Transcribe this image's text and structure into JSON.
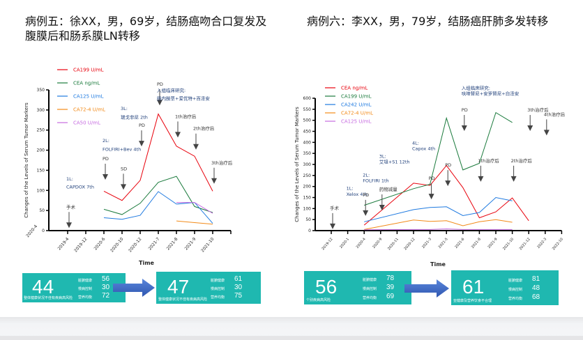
{
  "colors": {
    "red": "#e8000b",
    "green": "#1a7a3c",
    "blue": "#1f7ae0",
    "orange": "#f28a18",
    "purple": "#c66be0",
    "annotation_blue": "#1f3f7a",
    "card_teal": "#1fb8b0",
    "arrow_blue": "#3a66c4"
  },
  "left_case": {
    "title": "病例五：徐XX，男，69岁，结肠癌吻合口复发及腹膜后和肠系膜LN转移",
    "cards": [
      {
        "score": "44",
        "subtitle": "整体健康状况不佳有疾病高风险",
        "metrics": [
          {
            "label": "脏腑健康",
            "value": "56"
          },
          {
            "label": "慢病控制",
            "value": "30"
          },
          {
            "label": "营养均衡",
            "value": "72"
          }
        ]
      },
      {
        "score": "47",
        "subtitle": "整体健康状况不佳有疾病高风险",
        "metrics": [
          {
            "label": "脏腑健康",
            "value": "61"
          },
          {
            "label": "慢病控制",
            "value": "30"
          },
          {
            "label": "营养均衡",
            "value": "75"
          }
        ]
      }
    ]
  },
  "right_case": {
    "title": "病例六：李XX，男，79岁，结肠癌肝肺多发转移",
    "cards": [
      {
        "score": "56",
        "subtitle": "个别疾病高风险",
        "metrics": [
          {
            "label": "脏腑健康",
            "value": "78"
          },
          {
            "label": "慢病控制",
            "value": "39"
          },
          {
            "label": "营养均衡",
            "value": "69"
          }
        ]
      },
      {
        "score": "61",
        "subtitle": "亚健康及营养饮食不合理",
        "metrics": [
          {
            "label": "脏腑健康",
            "value": "81"
          },
          {
            "label": "慢病控制",
            "value": "48"
          },
          {
            "label": "营养均衡",
            "value": "68"
          }
        ]
      }
    ]
  },
  "chart_data": [
    {
      "type": "line",
      "title": "",
      "xlabel": "Time",
      "ylabel": "Changes of the Levels of Serum Tumor Markers",
      "ylim": [
        0,
        350
      ],
      "yticks": [
        0,
        50,
        100,
        150,
        200,
        250,
        300,
        350
      ],
      "categories": [
        "2019-4",
        "2019-12",
        "2020-6",
        "2020-10",
        "2020-12",
        "2021-7",
        "2021-8",
        "2021-9",
        "2021-10"
      ],
      "extra_ytick_label": "2020-4",
      "legend": "top-left",
      "series": [
        {
          "name": "CA199 U/mL",
          "color": "red",
          "values": [
            null,
            null,
            98,
            75,
            125,
            290,
            210,
            185,
            98
          ]
        },
        {
          "name": "CEA ng/mL",
          "color": "green",
          "values": [
            null,
            null,
            53,
            40,
            68,
            120,
            135,
            60,
            45
          ]
        },
        {
          "name": "CA125 U/mL",
          "color": "blue",
          "values": [
            null,
            null,
            32,
            28,
            38,
            97,
            66,
            70,
            18
          ]
        },
        {
          "name": "CA72-4 U/mL",
          "color": "orange",
          "values": [
            null,
            null,
            null,
            null,
            null,
            null,
            24,
            20,
            16
          ]
        },
        {
          "name": "CA50 U/mL",
          "color": "purple",
          "values": [
            null,
            null,
            null,
            null,
            null,
            null,
            70,
            70,
            43
          ]
        }
      ],
      "annotations": [
        {
          "text": "手术",
          "x": "2019-4",
          "y": 55,
          "arrow": true,
          "blue": false
        },
        {
          "text": "1L:",
          "x": "2019-4",
          "y": 125,
          "arrow": false,
          "blue": true
        },
        {
          "text": "CAPDOX 7th",
          "x": "2019-4",
          "y": 105,
          "arrow": false,
          "blue": true
        },
        {
          "text": "PD",
          "x": "2020-6",
          "y": 175,
          "arrow": true,
          "blue": false
        },
        {
          "text": "SD",
          "x": "2020-10",
          "y": 150,
          "arrow": true,
          "blue": false
        },
        {
          "text": "2L:",
          "x": "2020-6",
          "y": 220,
          "arrow": false,
          "blue": true
        },
        {
          "text": "FOLFIRI+Bev 4th",
          "x": "2020-6",
          "y": 198,
          "arrow": false,
          "blue": true
        },
        {
          "text": "3L:",
          "x": "2020-10",
          "y": 300,
          "arrow": false,
          "blue": true
        },
        {
          "text": "瑞戈非尼 2th",
          "x": "2020-10",
          "y": 278,
          "arrow": false,
          "blue": true
        },
        {
          "text": "PD",
          "x": "2020-12",
          "y": 258,
          "arrow": true,
          "blue": false
        },
        {
          "text": "PD",
          "x": "2021-7",
          "y": 360,
          "arrow": true,
          "blue": false
        },
        {
          "text": "入组临床研究:",
          "x": "2021-7",
          "y": 345,
          "arrow": false,
          "blue": true
        },
        {
          "text": "肠内胺草+爱优特+百泽安",
          "x": "2021-7",
          "y": 325,
          "arrow": false,
          "blue": true
        },
        {
          "text": "1th治疗后",
          "x": "2021-8",
          "y": 280,
          "arrow": true,
          "blue": false
        },
        {
          "text": "2th治疗后",
          "x": "2021-9",
          "y": 250,
          "arrow": true,
          "blue": false
        },
        {
          "text": "3th治疗后",
          "x": "2021-10",
          "y": 165,
          "arrow": true,
          "blue": false
        }
      ]
    },
    {
      "type": "line",
      "title": "",
      "xlabel": "Time",
      "ylabel": "Changes of the Levels of Serum Tumor Markers",
      "ylim": [
        0,
        600
      ],
      "yticks": [
        0,
        50,
        100,
        150,
        200,
        250,
        300,
        350,
        400,
        450,
        500,
        550,
        600
      ],
      "categories": [
        "2019-12",
        "2020-1",
        "2020-4",
        "2020-9",
        "2020-11",
        "2020-12",
        "2021-3",
        "2021-5",
        "2021-6",
        "2021-8",
        "2021-9",
        "2021-10",
        "2021-12",
        "2022-3",
        "2022-10"
      ],
      "legend": "top-left",
      "series": [
        {
          "name": "CEA ng/mL",
          "color": "red",
          "values": [
            null,
            null,
            25,
            null,
            null,
            215,
            205,
            295,
            195,
            58,
            85,
            148,
            45,
            null,
            null
          ]
        },
        {
          "name": "CA199 U/mL",
          "color": "green",
          "values": [
            null,
            null,
            115,
            null,
            null,
            190,
            210,
            510,
            275,
            305,
            535,
            490,
            null,
            null,
            null
          ]
        },
        {
          "name": "CA242 U/mL",
          "color": "blue",
          "values": [
            null,
            null,
            40,
            null,
            null,
            95,
            105,
            108,
            68,
            82,
            150,
            135,
            null,
            null,
            null
          ]
        },
        {
          "name": "CA72-4 U/mL",
          "color": "orange",
          "values": [
            null,
            null,
            5,
            null,
            null,
            48,
            42,
            45,
            22,
            40,
            50,
            38,
            null,
            null,
            null
          ]
        },
        {
          "name": "CA125 U/mL",
          "color": "purple",
          "values": [
            null,
            null,
            4,
            null,
            null,
            5,
            5,
            8,
            5,
            5,
            5,
            5,
            null,
            null,
            null
          ]
        }
      ],
      "annotations": [
        {
          "text": "手术",
          "x": "2019-12",
          "y": 95,
          "arrow": true,
          "blue": false
        },
        {
          "text": "1L:",
          "x": "2020-1",
          "y": 185,
          "arrow": false,
          "blue": true
        },
        {
          "text": "Xelox 4th",
          "x": "2020-1",
          "y": 158,
          "arrow": false,
          "blue": true
        },
        {
          "text": "PD",
          "x": "2020-4",
          "y": 155,
          "arrow": true,
          "blue": false
        },
        {
          "text": "2L:",
          "x": "2020-4",
          "y": 245,
          "arrow": false,
          "blue": true
        },
        {
          "text": "FOLFIRI 1th",
          "x": "2020-4",
          "y": 220,
          "arrow": false,
          "blue": true
        },
        {
          "text": "药物减量",
          "x": "2020-9",
          "y": 180,
          "arrow": true,
          "blue": false
        },
        {
          "text": "3L:",
          "x": "2020-9",
          "y": 330,
          "arrow": false,
          "blue": true
        },
        {
          "text": "艾坦+S1 12th",
          "x": "2020-9",
          "y": 305,
          "arrow": false,
          "blue": true
        },
        {
          "text": "4L:",
          "x": "2020-12",
          "y": 390,
          "arrow": false,
          "blue": true
        },
        {
          "text": "Capox 4th",
          "x": "2020-12",
          "y": 365,
          "arrow": false,
          "blue": true
        },
        {
          "text": "PD",
          "x": "2021-3",
          "y": 230,
          "arrow": true,
          "blue": false
        },
        {
          "text": "PD",
          "x": "2021-5",
          "y": 290,
          "arrow": true,
          "blue": false
        },
        {
          "text": "PD",
          "x": "2021-6",
          "y": 540,
          "arrow": true,
          "blue": false
        },
        {
          "text": "入组临床研究:",
          "x": "2021-6",
          "y": 640,
          "arrow": false,
          "blue": true
        },
        {
          "text": "呋喹替尼+安罗替尼+白泽安",
          "x": "2021-6",
          "y": 615,
          "arrow": false,
          "blue": true
        },
        {
          "text": "1th治疗后",
          "x": "2021-8",
          "y": 310,
          "arrow": true,
          "blue": false
        },
        {
          "text": "2th治疗后",
          "x": "2021-10",
          "y": 310,
          "arrow": true,
          "blue": false
        },
        {
          "text": "3th治疗后",
          "x": "2021-12",
          "y": 540,
          "arrow": true,
          "blue": false
        },
        {
          "text": "4th治疗后",
          "x": "2022-3",
          "y": 520,
          "arrow": true,
          "blue": false
        }
      ]
    }
  ]
}
